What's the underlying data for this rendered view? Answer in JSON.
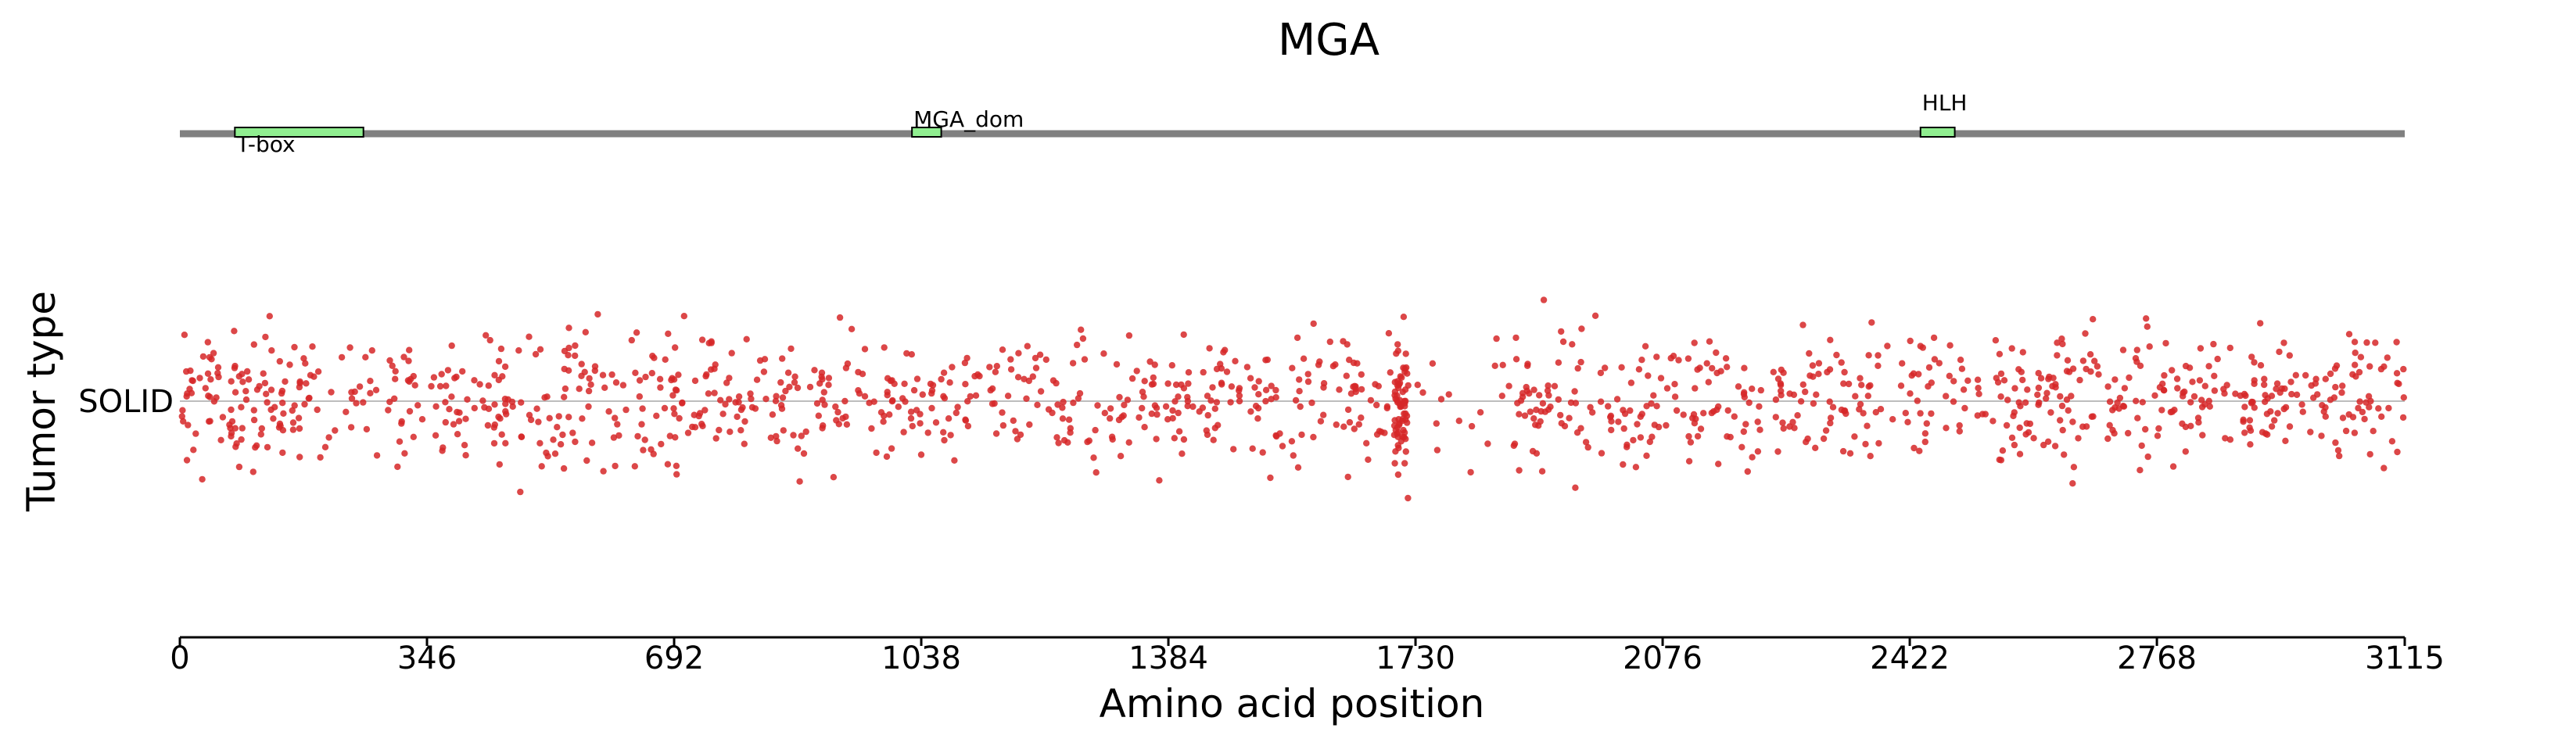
{
  "chart_data": {
    "type": "scatter",
    "title": "MGA",
    "xlabel": "Amino acid position",
    "ylabel": "Tumor type",
    "xlim": [
      0,
      3115
    ],
    "x_ticks": [
      "0",
      "346",
      "692",
      "1038",
      "1384",
      "1730",
      "2076",
      "2422",
      "2768",
      "3115"
    ],
    "y_categories": [
      "SOLID"
    ],
    "point_color": "#d62728",
    "domain_color": "#90ee90",
    "backbone_color": "#808080",
    "domains": [
      {
        "name": "T-box",
        "start": 77,
        "end": 257,
        "label_position": "below"
      },
      {
        "name": "MGA_dom",
        "start": 1025,
        "end": 1066,
        "label_position": "above"
      },
      {
        "name": "HLH",
        "start": 2437,
        "end": 2485,
        "label_position": "above"
      }
    ],
    "mutations": {
      "category": "SOLID",
      "count": 1400,
      "positions": "spread across 0–3115 with a gap near 1720–1840",
      "y_jitter": "vertical jitter around the SOLID baseline for visibility"
    }
  }
}
